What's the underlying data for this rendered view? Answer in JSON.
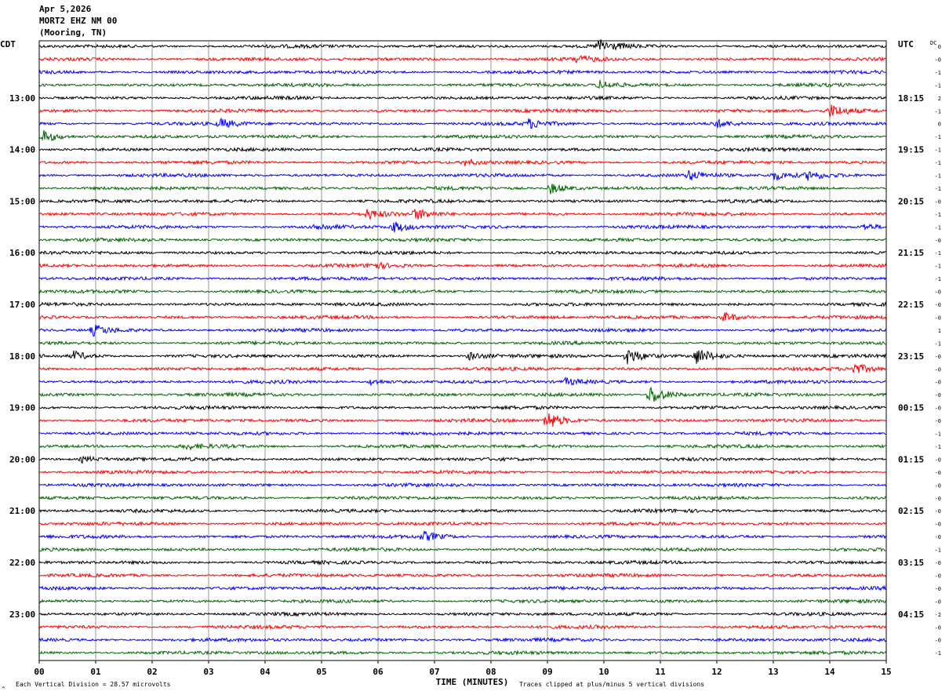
{
  "header": {
    "date": "Apr 5,2026",
    "station": "MORT2 EHZ NM 00",
    "location": "(Mooring, TN)"
  },
  "chart_data": {
    "type": "line",
    "title": "MORT2 EHZ NM 00",
    "xlabel": "TIME (MINUTES)",
    "x_ticks": [
      "00",
      "01",
      "02",
      "03",
      "04",
      "05",
      "06",
      "07",
      "08",
      "09",
      "10",
      "11",
      "12",
      "13",
      "14",
      "15"
    ],
    "xlim": [
      0,
      15
    ],
    "left_axis_label": "CDT",
    "right_axis_label": "UTC",
    "dc_label": "DC",
    "row_count": 48,
    "row_minutes": 15,
    "trace_colors": [
      "#000000",
      "#ff0000",
      "#0000ff",
      "#006400"
    ],
    "left_time_labels": [
      "13:00",
      "14:00",
      "15:00",
      "16:00",
      "17:00",
      "18:00",
      "19:00",
      "20:00",
      "21:00",
      "22:00",
      "23:00"
    ],
    "right_time_labels": [
      "18:15",
      "19:15",
      "20:15",
      "21:15",
      "22:15",
      "23:15",
      "00:15",
      "01:15",
      "02:15",
      "03:15",
      "04:15"
    ],
    "label_start_row": 4,
    "dc_offsets": [
      "0",
      "-0",
      "-1",
      "-1",
      "2",
      "-1",
      "0",
      "-1",
      "-1",
      "-1",
      "-1",
      "-1",
      "-0",
      "-1",
      "-1",
      "-0",
      "-1",
      "-1",
      "-1",
      "-0",
      "-0",
      "-0",
      "1",
      "-1",
      "-0",
      "-0",
      "-0",
      "-0",
      "-0",
      "-0",
      "-1",
      "-1",
      "-0",
      "-0",
      "-0",
      "-0",
      "-0",
      "-0",
      "-0",
      "-1",
      "-0",
      "-0",
      "-0",
      "-0",
      "-2",
      "-0",
      "-0",
      "-1"
    ],
    "events": [
      {
        "row": 0,
        "minute": 9.9,
        "amplitude": 3
      },
      {
        "row": 1,
        "minute": 9.5,
        "amplitude": 1.5
      },
      {
        "row": 3,
        "minute": 9.9,
        "amplitude": 2
      },
      {
        "row": 5,
        "minute": 14.0,
        "amplitude": 3
      },
      {
        "row": 6,
        "minute": 3.2,
        "amplitude": 2
      },
      {
        "row": 6,
        "minute": 8.65,
        "amplitude": 2
      },
      {
        "row": 6,
        "minute": 11.95,
        "amplitude": 2
      },
      {
        "row": 7,
        "minute": 0.05,
        "amplitude": 3
      },
      {
        "row": 9,
        "minute": 7.5,
        "amplitude": 1.5
      },
      {
        "row": 10,
        "minute": 11.5,
        "amplitude": 2
      },
      {
        "row": 10,
        "minute": 13.0,
        "amplitude": 2
      },
      {
        "row": 10,
        "minute": 13.6,
        "amplitude": 2
      },
      {
        "row": 11,
        "minute": 9.05,
        "amplitude": 2.5
      },
      {
        "row": 13,
        "minute": 6.65,
        "amplitude": 2.5
      },
      {
        "row": 13,
        "minute": 5.8,
        "amplitude": 2
      },
      {
        "row": 14,
        "minute": 6.25,
        "amplitude": 2.5
      },
      {
        "row": 14,
        "minute": 4.9,
        "amplitude": 1.5
      },
      {
        "row": 14,
        "minute": 14.6,
        "amplitude": 1.5
      },
      {
        "row": 17,
        "minute": 5.85,
        "amplitude": 1.5
      },
      {
        "row": 21,
        "minute": 12.1,
        "amplitude": 2.5
      },
      {
        "row": 22,
        "minute": 0.95,
        "amplitude": 2.5
      },
      {
        "row": 24,
        "minute": 0.6,
        "amplitude": 2
      },
      {
        "row": 24,
        "minute": 7.6,
        "amplitude": 2
      },
      {
        "row": 24,
        "minute": 10.4,
        "amplitude": 4
      },
      {
        "row": 24,
        "minute": 11.6,
        "amplitude": 4
      },
      {
        "row": 25,
        "minute": 14.4,
        "amplitude": 2.5
      },
      {
        "row": 26,
        "minute": 9.3,
        "amplitude": 1.5
      },
      {
        "row": 26,
        "minute": 5.85,
        "amplitude": 1.5
      },
      {
        "row": 27,
        "minute": 10.8,
        "amplitude": 5
      },
      {
        "row": 29,
        "minute": 8.95,
        "amplitude": 5
      },
      {
        "row": 31,
        "minute": 2.6,
        "amplitude": 1
      },
      {
        "row": 32,
        "minute": 0.75,
        "amplitude": 1.5
      },
      {
        "row": 38,
        "minute": 6.8,
        "amplitude": 2
      }
    ]
  },
  "footer": {
    "scale_note": "Each Vertical Division =   28.57 microvolts",
    "clip_note": "Traces clipped at plus/minus 5 vertical divisions",
    "corner_mark": "^"
  }
}
